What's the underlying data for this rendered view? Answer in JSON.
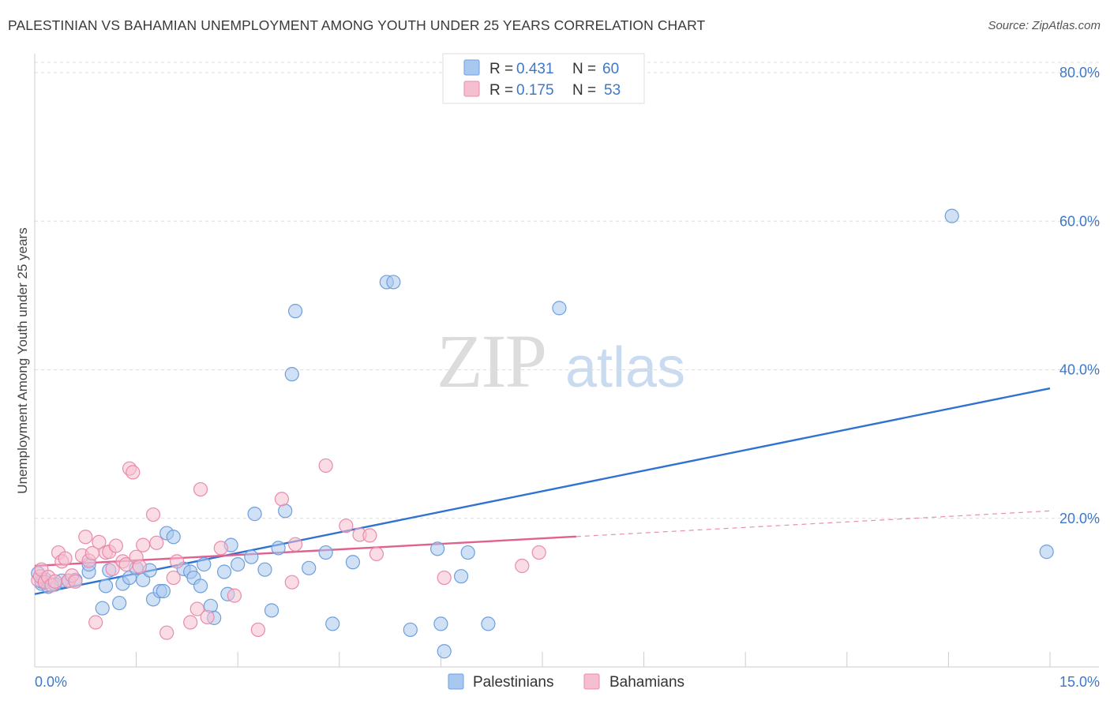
{
  "title": "PALESTINIAN VS BAHAMIAN UNEMPLOYMENT AMONG YOUTH UNDER 25 YEARS CORRELATION CHART",
  "source": "Source: ZipAtlas.com",
  "watermark": {
    "part1": "ZIP",
    "part2": "atlas"
  },
  "colors": {
    "blue_fill": "#a9c8ef",
    "blue_stroke": "#6e9fdc",
    "blue_line": "#2f72d2",
    "pink_fill": "#f6bfd0",
    "pink_stroke": "#e98bab",
    "pink_line": "#e0608f",
    "grid": "#dddddd",
    "tick_text": "#3d78c8"
  },
  "legend": {
    "rows": [
      {
        "r_label": "R = ",
        "r_value": "0.431",
        "n_label": "N = ",
        "n_value": "60"
      },
      {
        "r_label": "R = ",
        "r_value": "0.175",
        "n_label": "N = ",
        "n_value": "53"
      }
    ]
  },
  "chart_data": {
    "type": "scatter",
    "title": "PALESTINIAN VS BAHAMIAN UNEMPLOYMENT AMONG YOUTH UNDER 25 YEARS CORRELATION CHART",
    "xlabel": "",
    "ylabel": "Unemployment Among Youth under 25 years",
    "xlim": [
      0,
      15
    ],
    "ylim": [
      0,
      80
    ],
    "x_tick_labels": [
      "0.0%",
      "15.0%"
    ],
    "y_ticks": [
      20,
      40,
      60,
      80
    ],
    "y_tick_labels": [
      "20.0%",
      "40.0%",
      "60.0%",
      "80.0%"
    ],
    "x_minor_ticks": [
      1.5,
      3.0,
      4.5,
      6.0,
      7.5,
      9.0,
      10.5,
      12.0,
      13.5,
      15.0
    ],
    "legend_position": "top-center",
    "series": [
      {
        "name": "Palestinians",
        "r": 0.431,
        "n": 60,
        "trend": {
          "x0": 0.0,
          "y0": 9.8,
          "x1": 15.0,
          "y1": 37.5,
          "solid_until": 15.0
        },
        "points": [
          [
            0.05,
            12.6
          ],
          [
            0.1,
            11.2
          ],
          [
            0.15,
            11.8
          ],
          [
            0.2,
            10.8
          ],
          [
            0.3,
            11.1
          ],
          [
            0.4,
            11.6
          ],
          [
            0.5,
            11.6
          ],
          [
            0.6,
            11.7
          ],
          [
            0.8,
            12.8
          ],
          [
            0.8,
            13.8
          ],
          [
            1.1,
            13.0
          ],
          [
            1.05,
            10.9
          ],
          [
            1.0,
            7.9
          ],
          [
            1.25,
            8.6
          ],
          [
            1.3,
            11.2
          ],
          [
            1.4,
            12.0
          ],
          [
            1.5,
            13.3
          ],
          [
            1.6,
            11.7
          ],
          [
            1.7,
            13.0
          ],
          [
            1.75,
            9.1
          ],
          [
            1.85,
            10.2
          ],
          [
            1.9,
            10.2
          ],
          [
            1.95,
            18.0
          ],
          [
            2.05,
            17.5
          ],
          [
            2.2,
            13.2
          ],
          [
            2.3,
            12.8
          ],
          [
            2.35,
            12.0
          ],
          [
            2.45,
            10.9
          ],
          [
            2.5,
            13.8
          ],
          [
            2.6,
            8.2
          ],
          [
            2.65,
            6.6
          ],
          [
            2.8,
            12.8
          ],
          [
            2.85,
            9.8
          ],
          [
            2.9,
            16.4
          ],
          [
            3.0,
            13.8
          ],
          [
            3.2,
            14.8
          ],
          [
            3.25,
            20.6
          ],
          [
            3.4,
            13.1
          ],
          [
            3.5,
            7.6
          ],
          [
            3.6,
            16.0
          ],
          [
            3.7,
            21.0
          ],
          [
            3.8,
            39.4
          ],
          [
            3.85,
            47.9
          ],
          [
            4.05,
            13.3
          ],
          [
            4.3,
            15.4
          ],
          [
            4.4,
            5.8
          ],
          [
            4.7,
            14.1
          ],
          [
            5.2,
            51.8
          ],
          [
            5.3,
            51.8
          ],
          [
            5.55,
            5.0
          ],
          [
            5.95,
            15.9
          ],
          [
            6.0,
            5.8
          ],
          [
            6.05,
            2.1
          ],
          [
            6.3,
            12.2
          ],
          [
            6.4,
            15.4
          ],
          [
            6.7,
            5.8
          ],
          [
            7.75,
            48.3
          ],
          [
            13.55,
            60.7
          ],
          [
            14.95,
            15.5
          ],
          [
            0.1,
            11.5
          ]
        ]
      },
      {
        "name": "Bahamians",
        "r": 0.175,
        "n": 53,
        "trend": {
          "x0": 0.0,
          "y0": 13.6,
          "x1": 15.0,
          "y1": 21.0,
          "solid_until": 8.0
        },
        "points": [
          [
            0.05,
            11.7
          ],
          [
            0.08,
            12.2
          ],
          [
            0.1,
            13.1
          ],
          [
            0.15,
            11.4
          ],
          [
            0.2,
            12.1
          ],
          [
            0.25,
            11.0
          ],
          [
            0.3,
            11.5
          ],
          [
            0.35,
            15.4
          ],
          [
            0.4,
            14.2
          ],
          [
            0.45,
            14.6
          ],
          [
            0.5,
            11.6
          ],
          [
            0.55,
            12.3
          ],
          [
            0.6,
            11.5
          ],
          [
            0.7,
            15.0
          ],
          [
            0.75,
            17.5
          ],
          [
            0.8,
            14.3
          ],
          [
            0.85,
            15.3
          ],
          [
            0.9,
            6.0
          ],
          [
            0.95,
            16.8
          ],
          [
            1.05,
            15.4
          ],
          [
            1.1,
            15.5
          ],
          [
            1.15,
            13.2
          ],
          [
            1.2,
            16.3
          ],
          [
            1.3,
            14.2
          ],
          [
            1.35,
            13.8
          ],
          [
            1.4,
            26.7
          ],
          [
            1.45,
            26.2
          ],
          [
            1.5,
            14.8
          ],
          [
            1.55,
            13.5
          ],
          [
            1.6,
            16.4
          ],
          [
            1.75,
            20.5
          ],
          [
            1.8,
            16.7
          ],
          [
            1.95,
            4.6
          ],
          [
            2.05,
            12.0
          ],
          [
            2.1,
            14.2
          ],
          [
            2.3,
            6.0
          ],
          [
            2.4,
            7.8
          ],
          [
            2.45,
            23.9
          ],
          [
            2.55,
            6.7
          ],
          [
            2.75,
            16.0
          ],
          [
            2.95,
            9.6
          ],
          [
            3.3,
            5.0
          ],
          [
            3.65,
            22.6
          ],
          [
            3.8,
            11.4
          ],
          [
            3.85,
            16.5
          ],
          [
            4.3,
            27.1
          ],
          [
            4.6,
            19.0
          ],
          [
            4.8,
            17.8
          ],
          [
            4.95,
            17.7
          ],
          [
            5.05,
            15.2
          ],
          [
            6.05,
            12.0
          ],
          [
            7.2,
            13.6
          ],
          [
            7.45,
            15.4
          ]
        ]
      }
    ]
  }
}
